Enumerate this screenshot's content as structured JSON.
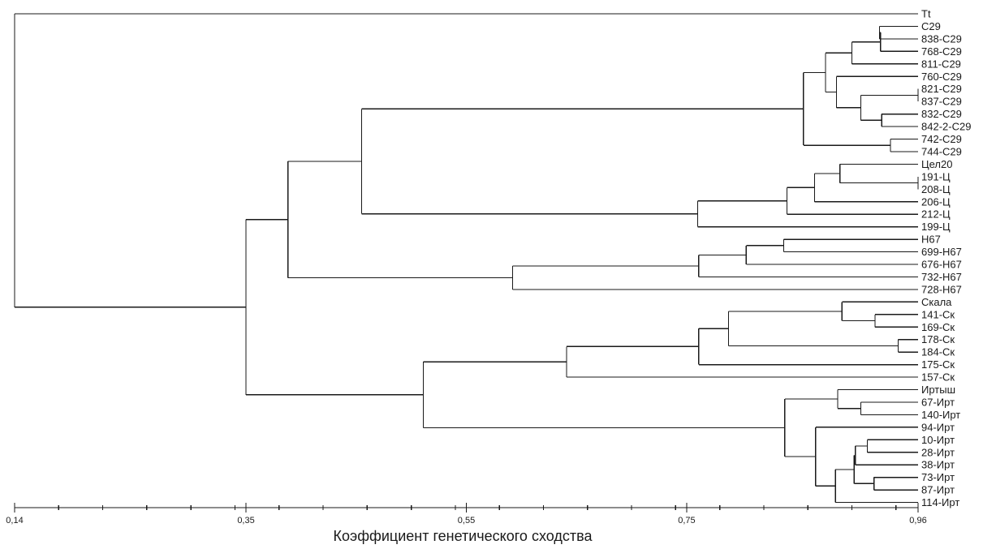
{
  "leaves": [
    "Tt",
    "C29",
    "838-C29",
    "768-C29",
    "811-C29",
    "760-C29",
    "821-C29",
    "837-C29",
    "832-C29",
    "842-2-C29",
    "742-C29",
    "744-C29",
    "Цел20",
    "191-Ц",
    "208-Ц",
    "206-Ц",
    "212-Ц",
    "199-Ц",
    "H67",
    "699-H67",
    "676-H67",
    "732-H67",
    "728-H67",
    "Скала",
    "141-Ск",
    "169-Ск",
    "178-Ск",
    "184-Ск",
    "175-Ск",
    "157-Ск",
    "Иртыш",
    "67-Ирт",
    "140-Ирт",
    "94-Ирт",
    "10-Ирт",
    "28-Ирт",
    "38-Ирт",
    "73-Ирт",
    "87-Ирт",
    "114-Ирт"
  ],
  "tree": {
    "h": 0.14,
    "children": [
      {
        "leaf": 0
      },
      {
        "h": 0.35,
        "children": [
          {
            "h": 0.388,
            "children": [
              {
                "h": 0.455,
                "children": [
                  {
                    "h": 0.856,
                    "children": [
                      {
                        "h": 0.876,
                        "children": [
                          {
                            "h": 0.9,
                            "children": [
                              {
                                "h": 0.926,
                                "children": [
                                  {
                                    "h": 0.925,
                                    "children": [
                                      {
                                        "leaf": 1
                                      },
                                      {
                                        "leaf": 2
                                      }
                                    ]
                                  },
                                  {
                                    "leaf": 3
                                  }
                                ]
                              },
                              {
                                "leaf": 4
                              }
                            ]
                          },
                          {
                            "h": 0.886,
                            "children": [
                              {
                                "leaf": 5
                              },
                              {
                                "h": 0.908,
                                "children": [
                                  {
                                    "h": 0.96,
                                    "children": [
                                      {
                                        "leaf": 6
                                      },
                                      {
                                        "leaf": 7
                                      }
                                    ]
                                  },
                                  {
                                    "h": 0.927,
                                    "children": [
                                      {
                                        "leaf": 8
                                      },
                                      {
                                        "leaf": 9
                                      }
                                    ]
                                  }
                                ]
                              }
                            ]
                          }
                        ]
                      },
                      {
                        "h": 0.935,
                        "children": [
                          {
                            "leaf": 10
                          },
                          {
                            "leaf": 11
                          }
                        ]
                      }
                    ]
                  },
                  {
                    "h": 0.76,
                    "children": [
                      {
                        "h": 0.841,
                        "children": [
                          {
                            "h": 0.866,
                            "children": [
                              {
                                "h": 0.889,
                                "children": [
                                  {
                                    "leaf": 12
                                  },
                                  {
                                    "h": 0.96,
                                    "children": [
                                      {
                                        "leaf": 13
                                      },
                                      {
                                        "leaf": 14
                                      }
                                    ]
                                  }
                                ]
                              },
                              {
                                "leaf": 15
                              }
                            ]
                          },
                          {
                            "leaf": 16
                          }
                        ]
                      },
                      {
                        "leaf": 17
                      }
                    ]
                  }
                ]
              },
              {
                "h": 0.592,
                "children": [
                  {
                    "h": 0.761,
                    "children": [
                      {
                        "h": 0.804,
                        "children": [
                          {
                            "h": 0.838,
                            "children": [
                              {
                                "leaf": 18
                              },
                              {
                                "leaf": 19
                              }
                            ]
                          },
                          {
                            "leaf": 20
                          }
                        ]
                      },
                      {
                        "leaf": 21
                      }
                    ]
                  },
                  {
                    "leaf": 22
                  }
                ]
              }
            ]
          },
          {
            "h": 0.511,
            "children": [
              {
                "h": 0.641,
                "children": [
                  {
                    "h": 0.761,
                    "children": [
                      {
                        "h": 0.788,
                        "children": [
                          {
                            "h": 0.891,
                            "children": [
                              {
                                "leaf": 23
                              },
                              {
                                "h": 0.921,
                                "children": [
                                  {
                                    "leaf": 24
                                  },
                                  {
                                    "leaf": 25
                                  }
                                ]
                              }
                            ]
                          },
                          {
                            "h": 0.942,
                            "children": [
                              {
                                "leaf": 26
                              },
                              {
                                "leaf": 27
                              }
                            ]
                          }
                        ]
                      },
                      {
                        "leaf": 28
                      }
                    ]
                  },
                  {
                    "leaf": 29
                  }
                ]
              },
              {
                "h": 0.839,
                "children": [
                  {
                    "h": 0.887,
                    "children": [
                      {
                        "leaf": 30
                      },
                      {
                        "h": 0.908,
                        "children": [
                          {
                            "leaf": 31
                          },
                          {
                            "leaf": 32
                          }
                        ]
                      }
                    ]
                  },
                  {
                    "h": 0.867,
                    "children": [
                      {
                        "leaf": 33
                      },
                      {
                        "h": 0.885,
                        "children": [
                          {
                            "h": 0.902,
                            "children": [
                              {
                                "h": 0.903,
                                "children": [
                                  {
                                    "h": 0.914,
                                    "children": [
                                      {
                                        "leaf": 34
                                      },
                                      {
                                        "leaf": 35
                                      }
                                    ]
                                  },
                                  {
                                    "leaf": 36
                                  }
                                ]
                              },
                              {
                                "h": 0.92,
                                "children": [
                                  {
                                    "leaf": 37
                                  },
                                  {
                                    "leaf": 38
                                  }
                                ]
                              }
                            ]
                          },
                          {
                            "leaf": 39
                          }
                        ]
                      }
                    ]
                  }
                ]
              }
            ]
          }
        ]
      }
    ]
  },
  "axis": {
    "min": 0.14,
    "max": 0.96,
    "labeled_ticks": [
      {
        "value": 0.14,
        "label": "0,14"
      },
      {
        "value": 0.35,
        "label": "0,35"
      },
      {
        "value": 0.55,
        "label": "0,55"
      },
      {
        "value": 0.75,
        "label": "0,75"
      },
      {
        "value": 0.96,
        "label": "0,96"
      }
    ],
    "minor_tick_step": 0.04,
    "title": "Коэффициент генетического сходства"
  }
}
